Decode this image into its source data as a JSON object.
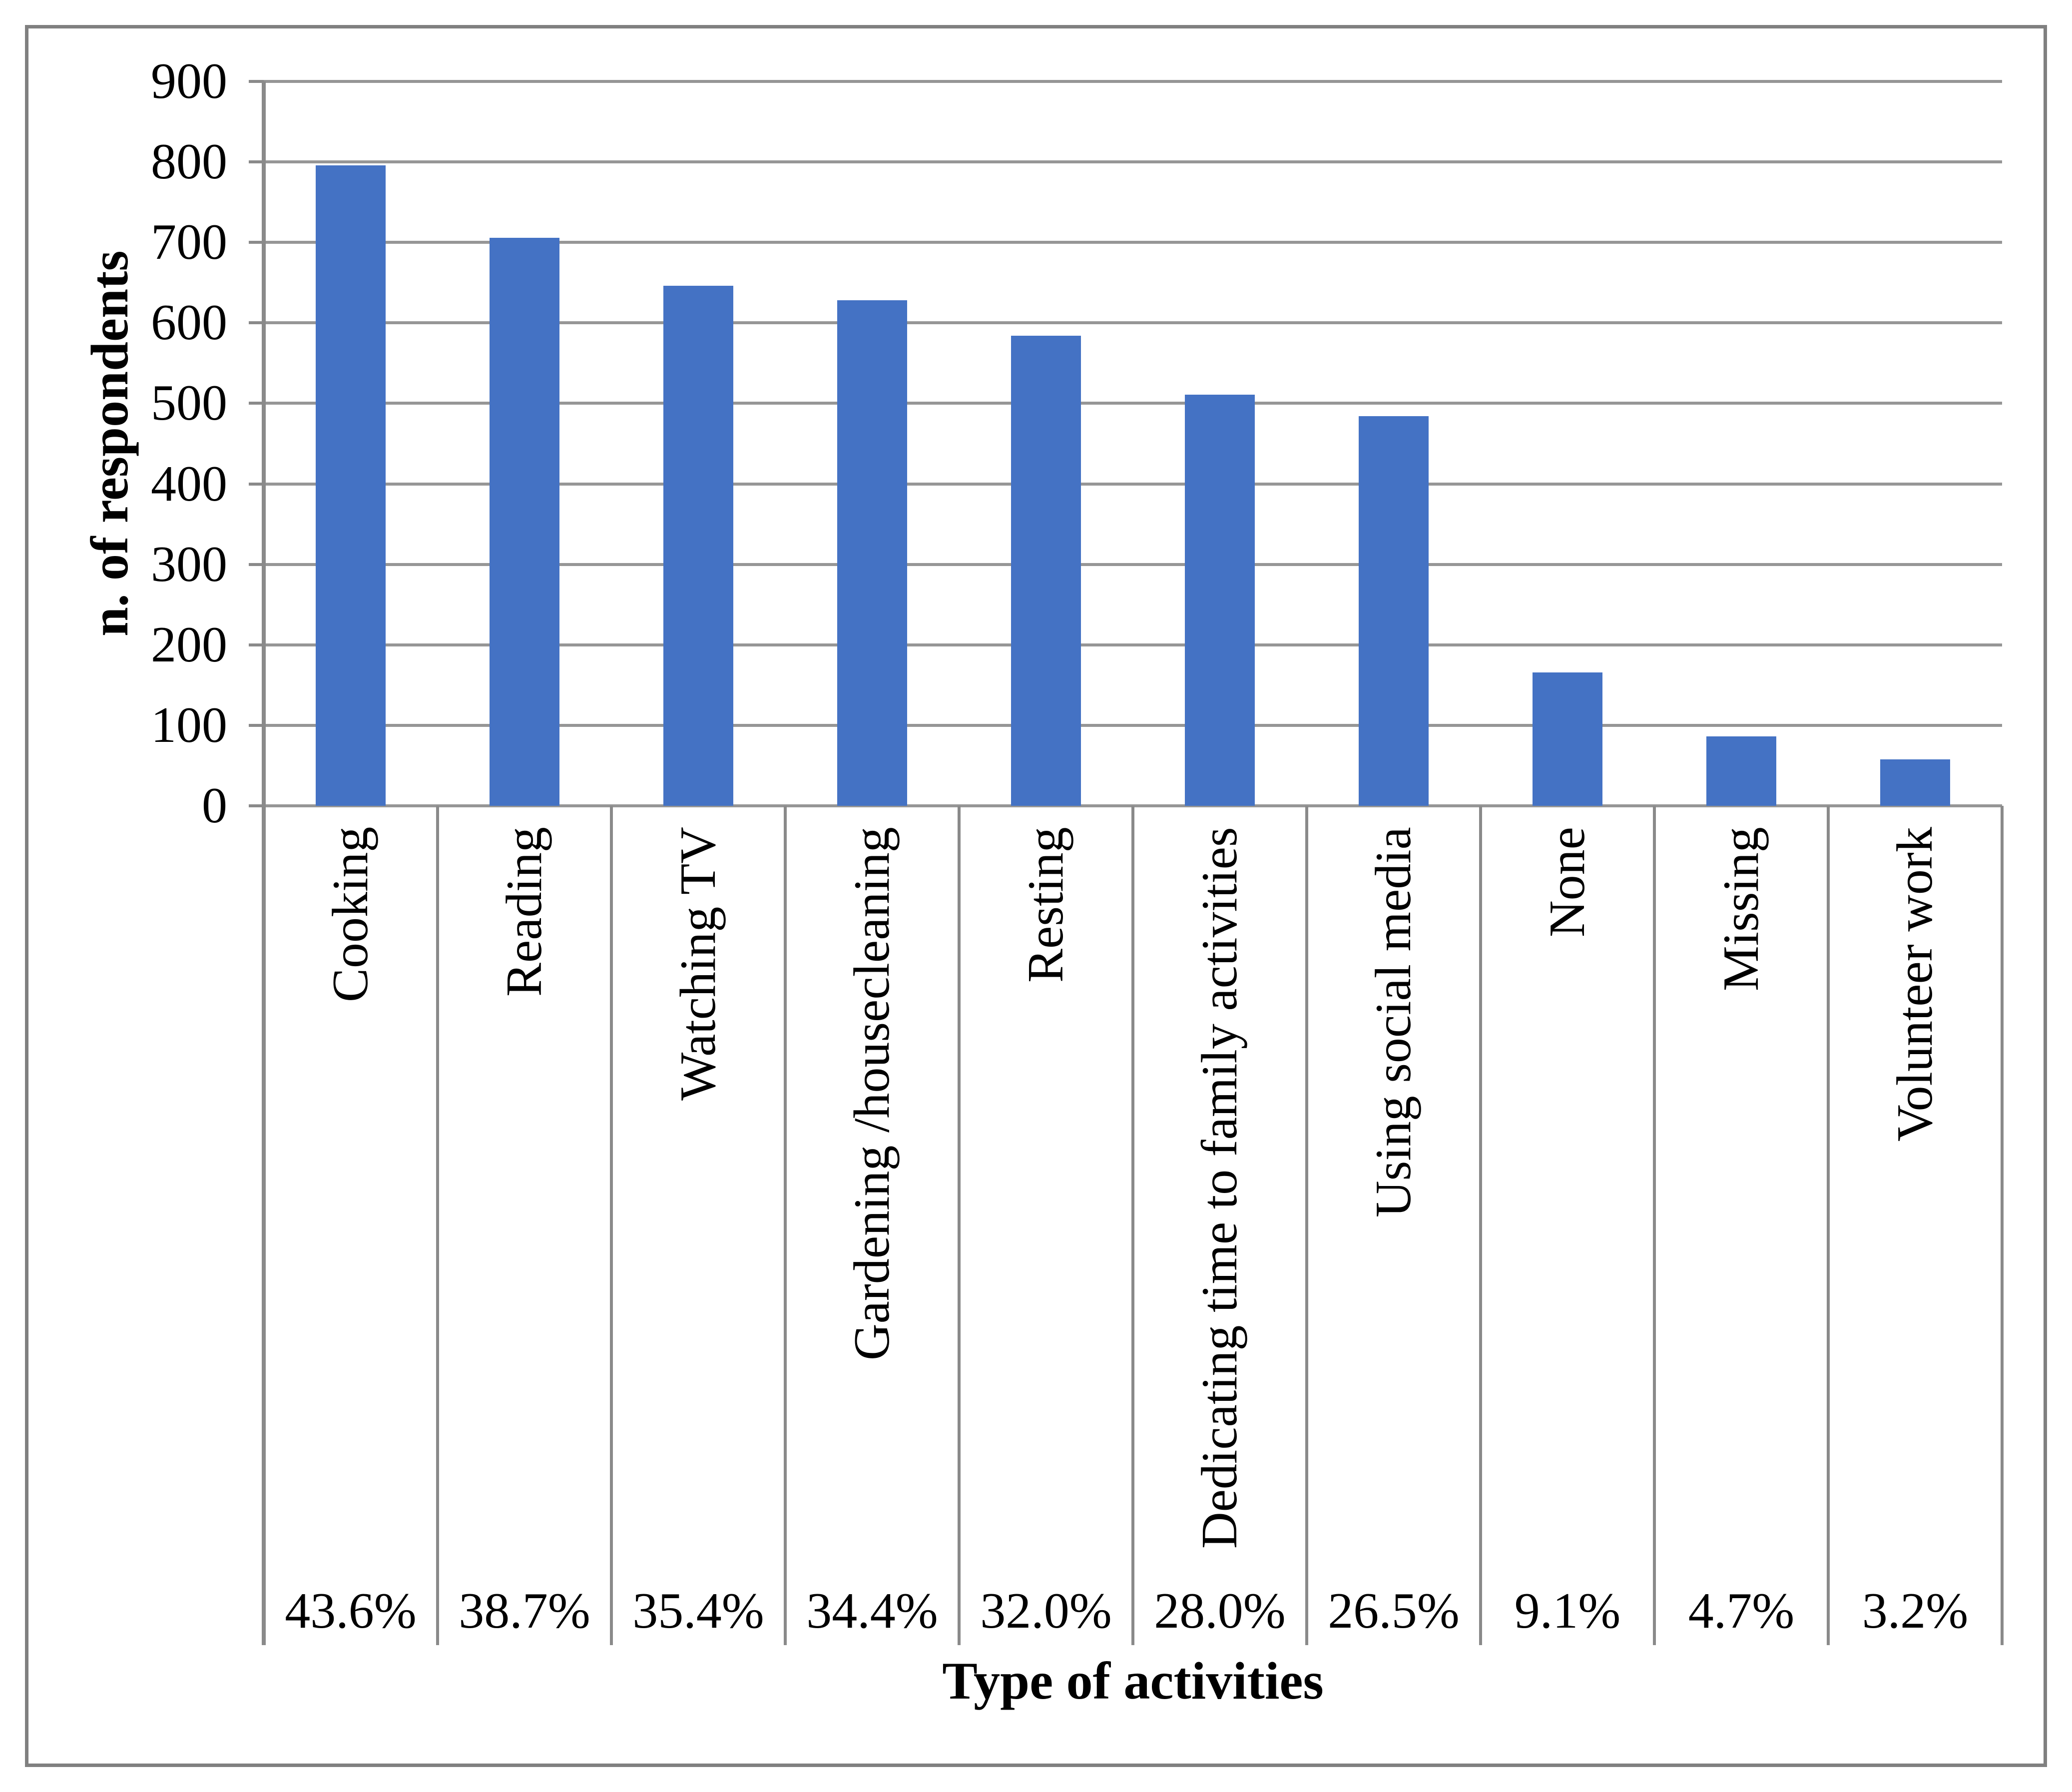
{
  "chart_data": {
    "type": "bar",
    "title": "",
    "ylabel": "n. of respondents",
    "xlabel": "Type of activities",
    "ylim": [
      0,
      900
    ],
    "ytick_step": 100,
    "grid": true,
    "legend": false,
    "bar_color": "#4472C4",
    "gridline_color": "#969696",
    "axis_color": "#8A8A8A",
    "border_color": "#808080",
    "categories": [
      "Cooking",
      "Reading",
      "Watching TV",
      "Gardening /housecleaning",
      "Resting",
      "Dedicating time to family activities",
      "Using social media",
      "None",
      "Missing",
      "Volunteer work"
    ],
    "values": [
      796,
      706,
      646,
      628,
      584,
      511,
      484,
      166,
      86,
      58
    ],
    "percent_labels": [
      "43.6%",
      "38.7%",
      "35.4%",
      "34.4%",
      "32.0%",
      "28.0%",
      "26.5%",
      "9.1%",
      "4.7%",
      "3.2%"
    ]
  }
}
